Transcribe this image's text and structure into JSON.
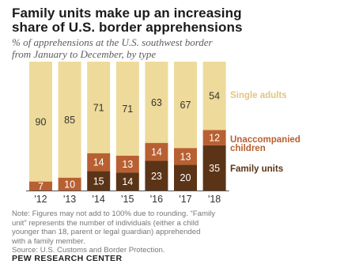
{
  "title_lines": [
    "Family units make up an increasing",
    "share of U.S. border apprehensions"
  ],
  "subtitle_lines": [
    "% of apprehensions at the U.S. southwest border",
    "from January to December, by type"
  ],
  "chart_data": {
    "type": "bar",
    "stacked": true,
    "categories": [
      "'12",
      "'13",
      "'14",
      "'15",
      "'16",
      "'17",
      "'18"
    ],
    "series": [
      {
        "name": "Family units",
        "values": [
          null,
          null,
          15,
          14,
          23,
          20,
          35
        ],
        "color": "#5b3417",
        "label_color": "#ffffff"
      },
      {
        "name": "Unaccompanied children",
        "values": [
          7,
          10,
          14,
          13,
          14,
          13,
          12
        ],
        "color": "#b86032",
        "label_color": "#ffffff"
      },
      {
        "name": "Single adults",
        "values": [
          90,
          85,
          71,
          71,
          63,
          67,
          54
        ],
        "color": "#eeda9a",
        "label_color": "#333333"
      }
    ],
    "legend_labels": [
      {
        "lines": [
          "Single adults"
        ],
        "color": "#e2c57e"
      },
      {
        "lines": [
          "Unaccompanied",
          "children"
        ],
        "color": "#b86032"
      },
      {
        "lines": [
          "Family units"
        ],
        "color": "#5b3417"
      }
    ],
    "legend_placement": "right",
    "ylim": [
      0,
      100
    ],
    "grid": false
  },
  "note_lines": [
    "Note: Figures may not add to 100% due to rounding. “Family",
    "unit” represents the number of individuals (either a child",
    "younger than 18, parent or legal guardian) apprehended",
    "with a family member.",
    "Source: U.S. Customs and Border Protection."
  ],
  "footer": "PEW RESEARCH CENTER"
}
